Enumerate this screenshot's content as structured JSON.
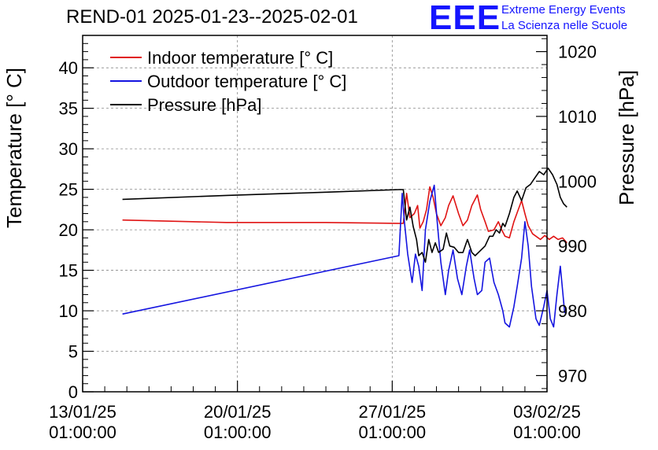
{
  "header": {
    "title": "REND-01 2025-01-23--2025-02-01",
    "logo_text": "EEE",
    "brand_line1": "Extreme Energy Events",
    "brand_line2": "La Scienza nelle Scuole"
  },
  "colors": {
    "indoor": "#e01414",
    "outdoor": "#1414e0",
    "pressure": "#000000",
    "grid": "#888888"
  },
  "chart_data": {
    "type": "line",
    "title": "REND-01 2025-01-23--2025-02-01",
    "ylabel": "Temperature [° C]",
    "y2label": "Pressure [hPa]",
    "xlabel": "",
    "x_unit": "days since 13/01/25 01:00:00",
    "xlim": [
      0,
      21
    ],
    "ylim": [
      0,
      44
    ],
    "y2lim": [
      967.5,
      1022.5
    ],
    "grid": true,
    "legend_position": "top-left",
    "x_ticks": [
      {
        "value": 0,
        "line1": "13/01/25",
        "line2": "01:00:00"
      },
      {
        "value": 7,
        "line1": "20/01/25",
        "line2": "01:00:00"
      },
      {
        "value": 14,
        "line1": "27/01/25",
        "line2": "01:00:00"
      },
      {
        "value": 21,
        "line1": "03/02/25",
        "line2": "01:00:00"
      }
    ],
    "y_ticks": [
      0,
      5,
      10,
      15,
      20,
      25,
      30,
      35,
      40
    ],
    "y2_ticks": [
      970,
      980,
      990,
      1000,
      1010,
      1020
    ],
    "series": [
      {
        "name": "Indoor temperature [° C]",
        "axis": "left",
        "color": "#e01414",
        "x": [
          1.8,
          6.5,
          11.0,
          14.3,
          14.5,
          14.65,
          14.8,
          15.0,
          15.15,
          15.25,
          15.4,
          15.55,
          15.7,
          15.85,
          16.0,
          16.2,
          16.4,
          16.55,
          16.75,
          17.0,
          17.2,
          17.4,
          17.6,
          17.85,
          18.0,
          18.2,
          18.35,
          18.6,
          18.8,
          18.95,
          19.1,
          19.3,
          19.5,
          19.7,
          19.85,
          20.0,
          20.15,
          20.35,
          20.5,
          20.7,
          20.9,
          21.1,
          21.3,
          21.5,
          21.7,
          21.9
        ],
        "y": [
          21.2,
          20.9,
          20.9,
          20.8,
          20.8,
          24.5,
          21.5,
          22.0,
          23.0,
          20.2,
          21.0,
          22.5,
          25.3,
          24.0,
          22.0,
          20.5,
          21.5,
          23.0,
          24.2,
          22.0,
          20.5,
          21.2,
          23.0,
          24.3,
          22.5,
          21.0,
          19.8,
          20.0,
          21.0,
          20.0,
          19.2,
          19.0,
          21.0,
          22.5,
          23.6,
          22.0,
          20.5,
          19.5,
          19.2,
          18.8,
          19.3,
          18.8,
          19.2,
          18.8,
          19.0,
          18.4
        ]
      },
      {
        "name": "Outdoor temperature [° C]",
        "axis": "left",
        "color": "#1414e0",
        "x": [
          1.8,
          14.3,
          14.45,
          14.55,
          14.7,
          14.9,
          15.05,
          15.2,
          15.35,
          15.5,
          15.7,
          15.9,
          16.05,
          16.2,
          16.4,
          16.55,
          16.75,
          16.95,
          17.15,
          17.35,
          17.5,
          17.7,
          17.85,
          18.05,
          18.2,
          18.4,
          18.6,
          18.8,
          19.0,
          19.1,
          19.3,
          19.5,
          19.65,
          19.85,
          20.0,
          20.15,
          20.3,
          20.5,
          20.65,
          20.85,
          21.0,
          21.15,
          21.3,
          21.45,
          21.6,
          21.8
        ],
        "y": [
          9.6,
          16.8,
          24.5,
          21.0,
          17.0,
          13.5,
          17.0,
          15.5,
          12.5,
          20.0,
          23.5,
          25.5,
          20.5,
          16.0,
          12.0,
          15.0,
          17.5,
          14.0,
          12.0,
          15.5,
          17.5,
          14.0,
          12.0,
          12.5,
          16.0,
          16.5,
          13.5,
          12.0,
          10.0,
          8.5,
          8.0,
          10.5,
          13.0,
          16.5,
          21.0,
          18.0,
          13.0,
          9.0,
          8.2,
          10.5,
          12.5,
          9.0,
          8.0,
          12.0,
          15.5,
          9.7
        ]
      },
      {
        "name": "Pressure [hPa]",
        "axis": "right",
        "color": "#000000",
        "x": [
          1.8,
          6.5,
          11.0,
          14.3,
          14.5,
          14.65,
          14.8,
          14.95,
          15.1,
          15.2,
          15.35,
          15.5,
          15.65,
          15.8,
          15.95,
          16.1,
          16.3,
          16.45,
          16.6,
          16.8,
          17.0,
          17.2,
          17.4,
          17.6,
          17.75,
          17.9,
          18.05,
          18.2,
          18.4,
          18.55,
          18.7,
          18.85,
          19.0,
          19.1,
          19.3,
          19.5,
          19.65,
          19.85,
          20.05,
          20.25,
          20.45,
          20.65,
          20.85,
          21.05,
          21.25,
          21.45,
          21.6,
          21.75,
          21.9
        ],
        "y": [
          997.2,
          997.8,
          998.3,
          998.7,
          998.7,
          994.0,
          996.0,
          993.0,
          991.0,
          988.5,
          989.0,
          987.5,
          991.0,
          989.0,
          990.5,
          989.0,
          989.5,
          992.0,
          990.0,
          989.8,
          989.0,
          989.0,
          991.0,
          989.0,
          988.5,
          989.0,
          989.5,
          990.0,
          991.5,
          991.5,
          992.5,
          992.0,
          993.5,
          993.0,
          995.0,
          997.5,
          998.5,
          997.0,
          999.0,
          999.5,
          1000.5,
          1001.5,
          1001.0,
          1002.0,
          1001.0,
          999.5,
          997.5,
          996.5,
          996.0
        ]
      }
    ]
  }
}
